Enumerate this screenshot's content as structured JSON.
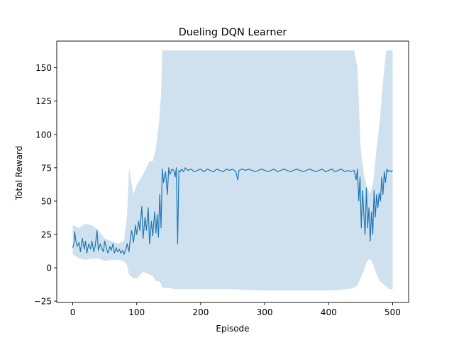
{
  "chart_data": {
    "type": "line",
    "title": "Dueling DQN Learner",
    "xlabel": "Episode",
    "ylabel": "Total Reward",
    "xlim": [
      -25,
      525
    ],
    "ylim": [
      -26,
      170
    ],
    "x_ticks": [
      0,
      100,
      200,
      300,
      400,
      500
    ],
    "y_ticks": [
      -25,
      0,
      25,
      50,
      75,
      100,
      125,
      150
    ],
    "legend": "none",
    "grid": false,
    "line_color": "#1f77b4",
    "band_color": "#cfe1ee",
    "series": [
      {
        "points": [
          [
            0,
            15
          ],
          [
            2,
            18
          ],
          [
            3,
            27
          ],
          [
            5,
            20
          ],
          [
            7,
            16
          ],
          [
            10,
            19
          ],
          [
            12,
            12
          ],
          [
            15,
            22
          ],
          [
            18,
            14
          ],
          [
            20,
            20
          ],
          [
            22,
            11
          ],
          [
            25,
            18
          ],
          [
            28,
            14
          ],
          [
            30,
            20
          ],
          [
            33,
            12
          ],
          [
            35,
            16
          ],
          [
            38,
            28
          ],
          [
            40,
            13
          ],
          [
            43,
            18
          ],
          [
            45,
            15
          ],
          [
            48,
            12
          ],
          [
            50,
            20
          ],
          [
            53,
            14
          ],
          [
            55,
            11
          ],
          [
            58,
            16
          ],
          [
            60,
            13
          ],
          [
            63,
            18
          ],
          [
            65,
            11
          ],
          [
            68,
            15
          ],
          [
            70,
            12
          ],
          [
            73,
            14
          ],
          [
            75,
            11
          ],
          [
            78,
            13
          ],
          [
            80,
            10
          ],
          [
            83,
            14
          ],
          [
            85,
            18
          ],
          [
            88,
            12
          ],
          [
            90,
            22
          ],
          [
            92,
            28
          ],
          [
            95,
            19
          ],
          [
            98,
            32
          ],
          [
            100,
            25
          ],
          [
            103,
            35
          ],
          [
            105,
            28
          ],
          [
            108,
            46
          ],
          [
            110,
            22
          ],
          [
            113,
            38
          ],
          [
            115,
            28
          ],
          [
            118,
            45
          ],
          [
            120,
            18
          ],
          [
            123,
            35
          ],
          [
            125,
            24
          ],
          [
            128,
            42
          ],
          [
            130,
            26
          ],
          [
            132,
            40
          ],
          [
            134,
            23
          ],
          [
            136,
            55
          ],
          [
            138,
            30
          ],
          [
            140,
            74
          ],
          [
            142,
            64
          ],
          [
            145,
            72
          ],
          [
            148,
            55
          ],
          [
            150,
            75
          ],
          [
            152,
            70
          ],
          [
            155,
            74
          ],
          [
            158,
            73
          ],
          [
            160,
            68
          ],
          [
            162,
            75
          ],
          [
            164,
            18
          ],
          [
            166,
            73
          ],
          [
            168,
            72
          ],
          [
            170,
            74
          ],
          [
            173,
            72
          ],
          [
            176,
            75
          ],
          [
            180,
            73
          ],
          [
            185,
            74
          ],
          [
            190,
            72
          ],
          [
            195,
            73
          ],
          [
            200,
            74
          ],
          [
            205,
            72
          ],
          [
            210,
            74
          ],
          [
            215,
            73
          ],
          [
            220,
            72
          ],
          [
            225,
            74
          ],
          [
            230,
            73
          ],
          [
            235,
            72
          ],
          [
            240,
            74
          ],
          [
            245,
            73
          ],
          [
            250,
            74
          ],
          [
            255,
            72
          ],
          [
            258,
            66
          ],
          [
            260,
            73
          ],
          [
            265,
            74
          ],
          [
            270,
            73
          ],
          [
            275,
            74
          ],
          [
            280,
            73
          ],
          [
            285,
            72
          ],
          [
            290,
            73
          ],
          [
            295,
            74
          ],
          [
            300,
            73
          ],
          [
            305,
            72
          ],
          [
            310,
            73
          ],
          [
            315,
            74
          ],
          [
            320,
            72
          ],
          [
            325,
            73
          ],
          [
            330,
            74
          ],
          [
            335,
            73
          ],
          [
            340,
            72
          ],
          [
            345,
            73
          ],
          [
            350,
            74
          ],
          [
            355,
            73
          ],
          [
            360,
            72
          ],
          [
            365,
            73
          ],
          [
            370,
            74
          ],
          [
            375,
            73
          ],
          [
            380,
            72
          ],
          [
            385,
            73
          ],
          [
            390,
            74
          ],
          [
            395,
            72
          ],
          [
            400,
            73
          ],
          [
            405,
            74
          ],
          [
            410,
            72
          ],
          [
            415,
            73
          ],
          [
            420,
            74
          ],
          [
            425,
            72
          ],
          [
            430,
            73
          ],
          [
            435,
            72
          ],
          [
            440,
            73
          ],
          [
            443,
            66
          ],
          [
            445,
            74
          ],
          [
            447,
            50
          ],
          [
            449,
            68
          ],
          [
            451,
            30
          ],
          [
            453,
            58
          ],
          [
            455,
            40
          ],
          [
            457,
            25
          ],
          [
            459,
            60
          ],
          [
            461,
            30
          ],
          [
            463,
            45
          ],
          [
            465,
            20
          ],
          [
            467,
            42
          ],
          [
            469,
            25
          ],
          [
            471,
            58
          ],
          [
            473,
            38
          ],
          [
            475,
            55
          ],
          [
            477,
            45
          ],
          [
            479,
            56
          ],
          [
            481,
            50
          ],
          [
            483,
            68
          ],
          [
            485,
            55
          ],
          [
            487,
            72
          ],
          [
            489,
            64
          ],
          [
            491,
            74
          ],
          [
            493,
            72
          ],
          [
            495,
            73
          ],
          [
            498,
            72
          ],
          [
            500,
            73
          ]
        ],
        "band": [
          [
            0,
            10,
            32
          ],
          [
            10,
            7,
            30
          ],
          [
            20,
            6,
            33
          ],
          [
            30,
            7,
            32
          ],
          [
            40,
            7,
            28
          ],
          [
            50,
            5,
            22
          ],
          [
            60,
            6,
            20
          ],
          [
            70,
            6,
            18
          ],
          [
            80,
            5,
            20
          ],
          [
            85,
            2,
            40
          ],
          [
            88,
            -5,
            75
          ],
          [
            95,
            -8,
            55
          ],
          [
            100,
            -8,
            62
          ],
          [
            110,
            -3,
            70
          ],
          [
            120,
            -5,
            80
          ],
          [
            125,
            -6,
            80
          ],
          [
            130,
            -10,
            90
          ],
          [
            135,
            -10,
            110
          ],
          [
            138,
            -12,
            130
          ],
          [
            140,
            -15,
            163
          ],
          [
            150,
            -15,
            163
          ],
          [
            160,
            -16,
            163
          ],
          [
            170,
            -16,
            163
          ],
          [
            180,
            -16,
            163
          ],
          [
            200,
            -16,
            163
          ],
          [
            250,
            -16,
            163
          ],
          [
            300,
            -17,
            163
          ],
          [
            350,
            -17,
            163
          ],
          [
            400,
            -17,
            163
          ],
          [
            430,
            -16,
            163
          ],
          [
            440,
            -15,
            163
          ],
          [
            445,
            -13,
            150
          ],
          [
            450,
            -8,
            90
          ],
          [
            455,
            -2,
            70
          ],
          [
            460,
            5,
            60
          ],
          [
            465,
            7,
            55
          ],
          [
            470,
            2,
            65
          ],
          [
            475,
            -5,
            90
          ],
          [
            480,
            -10,
            110
          ],
          [
            485,
            -12,
            140
          ],
          [
            490,
            -14,
            163
          ],
          [
            495,
            -16,
            163
          ],
          [
            500,
            -16,
            163
          ]
        ]
      }
    ]
  }
}
